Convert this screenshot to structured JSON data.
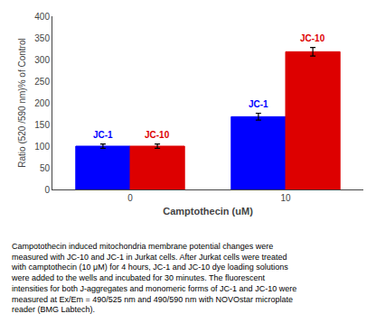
{
  "chart_data": {
    "type": "bar",
    "categories": [
      "0",
      "10"
    ],
    "series": [
      {
        "name": "JC-1",
        "color": "#0000FF",
        "values": [
          100,
          168
        ],
        "errors": [
          5,
          8
        ]
      },
      {
        "name": "JC-10",
        "color": "#DD0000",
        "values": [
          100,
          318
        ],
        "errors": [
          5,
          10
        ]
      }
    ],
    "xlabel": "Camptothecin (uM)",
    "ylabel": "Ratio (520 /590 nm)% of Control",
    "ylim": [
      0,
      400
    ],
    "yticks": [
      0,
      50,
      100,
      150,
      200,
      250,
      300,
      350,
      400
    ],
    "grid": false,
    "annotations": [
      "Campotothecin induced mitochondria membrane potential changes were",
      "measured with JC-10 and JC-1 in Jurkat cells. After Jurkat cells were treated",
      "with camptothecin (10 μM) for 4 hours, JC-1 and JC-10 dye loading solutions",
      "were added to the wells and incubated for 30 minutes. The fluorescent",
      "intensities for both J-aggregates and monomeric forms of JC-1 and JC-10 were",
      "measured at Ex/Em = 490/525 nm and 490/590 nm with NOVOstar microplate",
      "reader (BMG Labtech)."
    ]
  }
}
